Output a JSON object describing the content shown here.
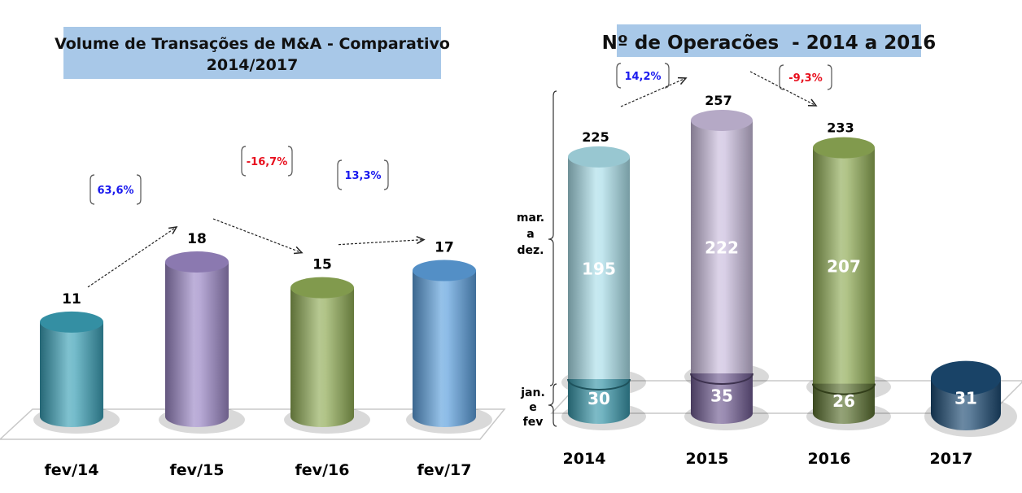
{
  "chart_data": [
    {
      "type": "bar",
      "title": "Volume de Transações de M&A - Comparativo",
      "subtitle": "2014/2017",
      "categories": [
        "fev/14",
        "fev/15",
        "fev/16",
        "fev/17"
      ],
      "values": [
        11,
        18,
        15,
        17
      ],
      "data_labels": [
        "11",
        "18",
        "15",
        "17"
      ],
      "colors": [
        "#3a9fb5",
        "#9a86c4",
        "#8fab55",
        "#5c9fdc"
      ],
      "changes": [
        {
          "from": 0,
          "to": 1,
          "label": "63,6%",
          "color": "#1a1aee"
        },
        {
          "from": 1,
          "to": 2,
          "label": "-16,7%",
          "color": "#e8101e"
        },
        {
          "from": 2,
          "to": 3,
          "label": "13,3%",
          "color": "#1a1aee"
        }
      ],
      "xlabel": "",
      "ylabel": "",
      "ylim": [
        0,
        25
      ],
      "grid": false,
      "legend": "none"
    },
    {
      "type": "bar",
      "stacked": true,
      "title": "Nº de Operacões  - 2014 a 2016",
      "categories": [
        "2014",
        "2015",
        "2016",
        "2017"
      ],
      "series": [
        {
          "name": "jan. e fev",
          "values": [
            30,
            35,
            26,
            31
          ],
          "colors": [
            "#3795a8",
            "#6e5a90",
            "#5a7030",
            "#1c4a72"
          ]
        },
        {
          "name": "mar. a dez.",
          "values": [
            195,
            222,
            207,
            null
          ],
          "colors": [
            "#a9dde8",
            "#c9bcdc",
            "#8fab55",
            null
          ]
        }
      ],
      "totals": [
        "225",
        "257",
        "233",
        null
      ],
      "segment_labels": {
        "bottom": [
          "30",
          "35",
          "26",
          "31"
        ],
        "top": [
          "195",
          "222",
          "207",
          null
        ]
      },
      "changes": [
        {
          "from": 0,
          "to": 1,
          "label": "14,2%",
          "color": "#1a1aee"
        },
        {
          "from": 1,
          "to": 2,
          "label": "-9,3%",
          "color": "#e8101e"
        }
      ],
      "brace_labels": {
        "upper": [
          "mar.",
          "a",
          "dez."
        ],
        "lower": [
          "jan.",
          "e",
          "fev"
        ]
      },
      "xlabel": "",
      "ylabel": "",
      "ylim": [
        0,
        300
      ],
      "grid": false,
      "legend": "none"
    }
  ]
}
